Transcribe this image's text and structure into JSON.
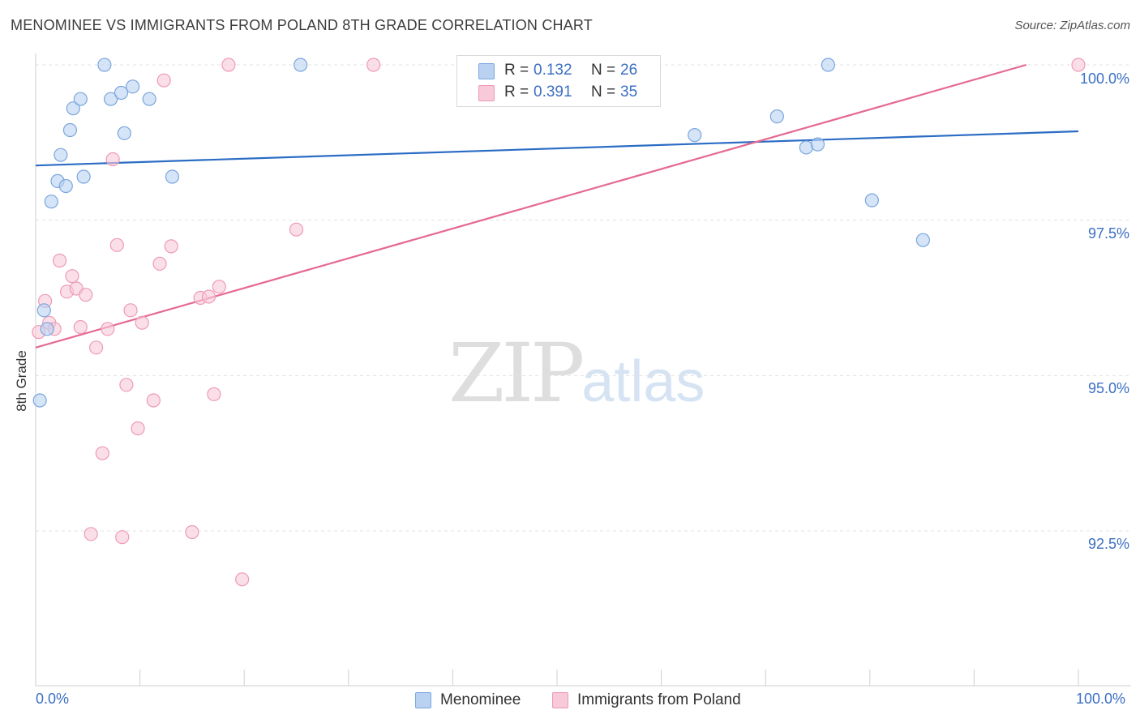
{
  "title": "MENOMINEE VS IMMIGRANTS FROM POLAND 8TH GRADE CORRELATION CHART",
  "source": "Source: ZipAtlas.com",
  "watermark": {
    "zip": "ZIP",
    "atlas": "atlas"
  },
  "colors": {
    "blue_fill": "#b9d2f1",
    "blue_stroke": "#7aa6dd",
    "blue_line": "#2b6cc4",
    "pink_fill": "#f8c9d8",
    "pink_stroke": "#ee9ab4",
    "pink_line": "#e56990",
    "tick_label": "#3b6fc4",
    "grid": "#e3e3e3"
  },
  "legend": {
    "series": [
      {
        "r_label": "R =",
        "r_value": "0.132",
        "n_label": "N =",
        "n_value": "26"
      },
      {
        "r_label": "R =",
        "r_value": "0.391",
        "n_label": "N =",
        "n_value": "35"
      }
    ]
  },
  "bottom_legend": [
    "Menominee",
    "Immigrants from Poland"
  ],
  "chart_data": {
    "type": "scatter",
    "title": "MENOMINEE VS IMMIGRANTS FROM POLAND 8TH GRADE CORRELATION CHART",
    "xlabel": "",
    "ylabel": "8th Grade",
    "xlim": [
      0,
      100
    ],
    "ylim": [
      90.1,
      100.2
    ],
    "x_tick_labels": [
      "0.0%",
      "100.0%"
    ],
    "y_ticks": [
      92.5,
      95.0,
      97.5,
      100.0
    ],
    "y_tick_labels": [
      "92.5%",
      "95.0%",
      "97.5%",
      "100.0%"
    ],
    "grid": true,
    "legend_position": "top-center",
    "series": [
      {
        "name": "Menominee",
        "color": "#7aa6dd",
        "trend": {
          "x": [
            0,
            100
          ],
          "y": [
            98.38,
            98.93
          ]
        },
        "points": [
          {
            "x": 0.4,
            "y": 94.6
          },
          {
            "x": 0.8,
            "y": 96.05
          },
          {
            "x": 1.1,
            "y": 95.75
          },
          {
            "x": 1.5,
            "y": 97.8
          },
          {
            "x": 2.1,
            "y": 98.13
          },
          {
            "x": 2.4,
            "y": 98.55
          },
          {
            "x": 2.9,
            "y": 98.05
          },
          {
            "x": 3.3,
            "y": 98.95
          },
          {
            "x": 3.6,
            "y": 99.3
          },
          {
            "x": 4.3,
            "y": 99.45
          },
          {
            "x": 4.6,
            "y": 98.2
          },
          {
            "x": 6.6,
            "y": 100.0
          },
          {
            "x": 7.2,
            "y": 99.45
          },
          {
            "x": 8.2,
            "y": 99.55
          },
          {
            "x": 8.5,
            "y": 98.9
          },
          {
            "x": 9.3,
            "y": 99.65
          },
          {
            "x": 10.9,
            "y": 99.45
          },
          {
            "x": 13.1,
            "y": 98.2
          },
          {
            "x": 25.4,
            "y": 100.0
          },
          {
            "x": 63.2,
            "y": 98.87
          },
          {
            "x": 71.1,
            "y": 99.17
          },
          {
            "x": 73.9,
            "y": 98.67
          },
          {
            "x": 75.0,
            "y": 98.72
          },
          {
            "x": 76.0,
            "y": 100.0
          },
          {
            "x": 80.2,
            "y": 97.82
          },
          {
            "x": 85.1,
            "y": 97.18
          }
        ]
      },
      {
        "name": "Immigrants from Poland",
        "color": "#ee9ab4",
        "trend": {
          "x": [
            0,
            95
          ],
          "y": [
            95.45,
            100.0
          ]
        },
        "points": [
          {
            "x": 0.3,
            "y": 95.7
          },
          {
            "x": 0.9,
            "y": 96.2
          },
          {
            "x": 1.3,
            "y": 95.85
          },
          {
            "x": 1.8,
            "y": 95.75
          },
          {
            "x": 2.3,
            "y": 96.85
          },
          {
            "x": 3.0,
            "y": 96.35
          },
          {
            "x": 3.5,
            "y": 96.6
          },
          {
            "x": 3.9,
            "y": 96.4
          },
          {
            "x": 4.3,
            "y": 95.78
          },
          {
            "x": 4.8,
            "y": 96.3
          },
          {
            "x": 5.3,
            "y": 92.45
          },
          {
            "x": 5.8,
            "y": 95.45
          },
          {
            "x": 6.4,
            "y": 93.75
          },
          {
            "x": 6.9,
            "y": 95.75
          },
          {
            "x": 7.4,
            "y": 98.48
          },
          {
            "x": 7.8,
            "y": 97.1
          },
          {
            "x": 8.3,
            "y": 92.4
          },
          {
            "x": 8.7,
            "y": 94.85
          },
          {
            "x": 9.1,
            "y": 96.05
          },
          {
            "x": 9.8,
            "y": 94.15
          },
          {
            "x": 10.2,
            "y": 95.85
          },
          {
            "x": 11.3,
            "y": 94.6
          },
          {
            "x": 11.9,
            "y": 96.8
          },
          {
            "x": 12.3,
            "y": 99.75
          },
          {
            "x": 13.0,
            "y": 97.08
          },
          {
            "x": 15.0,
            "y": 92.48
          },
          {
            "x": 15.8,
            "y": 96.25
          },
          {
            "x": 16.6,
            "y": 96.27
          },
          {
            "x": 17.1,
            "y": 94.7
          },
          {
            "x": 17.6,
            "y": 96.43
          },
          {
            "x": 18.5,
            "y": 100.0
          },
          {
            "x": 19.8,
            "y": 91.72
          },
          {
            "x": 25.0,
            "y": 97.35
          },
          {
            "x": 32.4,
            "y": 100.0
          },
          {
            "x": 100.0,
            "y": 100.0
          }
        ]
      }
    ]
  }
}
